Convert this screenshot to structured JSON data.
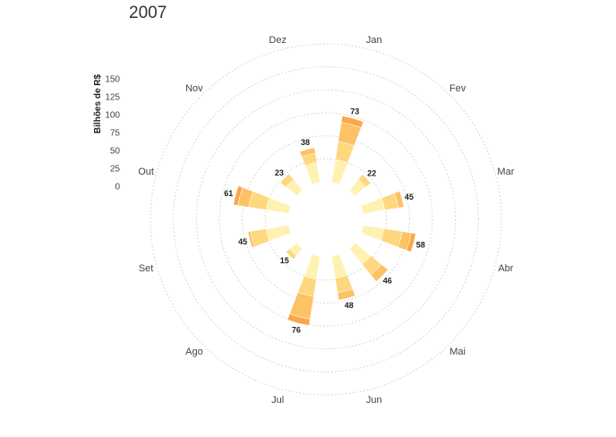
{
  "chart_data": {
    "type": "polar-stacked-bar",
    "title": "2007",
    "ylabel": "Bilhões de R$",
    "ylim": [
      0,
      150
    ],
    "yticks": [
      0,
      25,
      50,
      75,
      100,
      125,
      150
    ],
    "grid": true,
    "categories": [
      "Jan",
      "Fev",
      "Mar",
      "Abr",
      "Mai",
      "Jun",
      "Jul",
      "Ago",
      "Set",
      "Out",
      "Nov",
      "Dez"
    ],
    "totals": [
      73,
      22,
      45,
      58,
      46,
      48,
      76,
      15,
      45,
      61,
      23,
      38
    ],
    "series": [
      {
        "color": "#fff1b0",
        "values": [
          25,
          15,
          24,
          23,
          22,
          24,
          25,
          10,
          25,
          25,
          15,
          22
        ]
      },
      {
        "color": "#fed77e",
        "values": [
          20,
          7,
          15,
          20,
          15,
          16,
          19,
          5,
          17,
          19,
          8,
          10
        ]
      },
      {
        "color": "#fcc265",
        "values": [
          21,
          0,
          6,
          10,
          9,
          8,
          25,
          0,
          3,
          12,
          0,
          6
        ]
      },
      {
        "color": "#f8a84b",
        "values": [
          7,
          0,
          0,
          5,
          0,
          0,
          7,
          0,
          0,
          5,
          0,
          0
        ]
      }
    ]
  }
}
